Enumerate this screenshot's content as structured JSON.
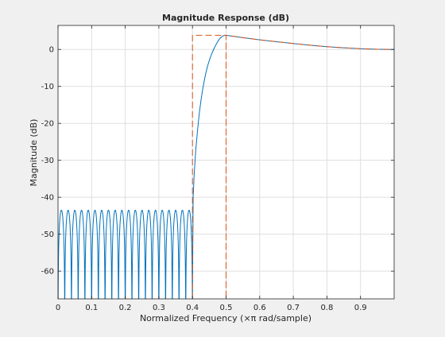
{
  "chart_data": {
    "type": "line",
    "title": "Magnitude Response (dB)",
    "xlabel": "Normalized Frequency (×π rad/sample)",
    "ylabel": "Magnitude (dB)",
    "xlim": [
      0,
      1
    ],
    "ylim": [
      -67.5,
      6.5
    ],
    "grid": true,
    "xticks": [
      0,
      0.1,
      0.2,
      0.3,
      0.4,
      0.5,
      0.6,
      0.7,
      0.8,
      0.9
    ],
    "xtick_labels": [
      "0",
      "0.1",
      "0.2",
      "0.3",
      "0.4",
      "0.5",
      "0.6",
      "0.7",
      "0.8",
      "0.9"
    ],
    "yticks": [
      0,
      -10,
      -20,
      -30,
      -40,
      -50,
      -60
    ],
    "ytick_labels": [
      "0",
      "-10",
      "-20",
      "-30",
      "-40",
      "-50",
      "-60"
    ],
    "series": [
      {
        "kind": "response",
        "color": "#0072bd",
        "stopband": {
          "x_start": 0,
          "x_end": 0.4,
          "lobe_count": 20,
          "peak_db": -43.5,
          "null_db": -67.5
        },
        "transition": [
          [
            0.4,
            -67.5
          ],
          [
            0.402,
            -40
          ],
          [
            0.405,
            -34
          ],
          [
            0.41,
            -27
          ],
          [
            0.415,
            -22
          ],
          [
            0.42,
            -17.5
          ],
          [
            0.425,
            -14
          ],
          [
            0.43,
            -11
          ],
          [
            0.435,
            -8.5
          ],
          [
            0.44,
            -6.3
          ],
          [
            0.445,
            -4.5
          ],
          [
            0.45,
            -3.0
          ],
          [
            0.455,
            -1.7
          ],
          [
            0.46,
            -0.6
          ],
          [
            0.465,
            0.4
          ],
          [
            0.47,
            1.3
          ],
          [
            0.475,
            2.1
          ],
          [
            0.48,
            2.8
          ],
          [
            0.485,
            3.3
          ],
          [
            0.49,
            3.6
          ],
          [
            0.495,
            3.8
          ],
          [
            0.5,
            3.85
          ]
        ],
        "passband": [
          [
            0.5,
            3.85
          ],
          [
            0.55,
            3.2
          ],
          [
            0.6,
            2.6
          ],
          [
            0.65,
            2.1
          ],
          [
            0.7,
            1.6
          ],
          [
            0.75,
            1.15
          ],
          [
            0.8,
            0.75
          ],
          [
            0.85,
            0.45
          ],
          [
            0.9,
            0.2
          ],
          [
            0.95,
            0.05
          ],
          [
            1.0,
            0.0
          ]
        ]
      },
      {
        "kind": "mask",
        "color": "#d95319",
        "dashed": true,
        "points": [
          [
            0.4,
            -67.5
          ],
          [
            0.4,
            3.85
          ],
          [
            0.5,
            3.85
          ],
          [
            0.5,
            -67.5
          ],
          [
            0.5,
            3.85
          ],
          [
            0.55,
            3.2
          ],
          [
            0.6,
            2.6
          ],
          [
            0.65,
            2.1
          ],
          [
            0.7,
            1.6
          ],
          [
            0.75,
            1.15
          ],
          [
            0.8,
            0.75
          ],
          [
            0.85,
            0.45
          ],
          [
            0.9,
            0.2
          ],
          [
            0.95,
            0.05
          ],
          [
            1.0,
            0.0
          ]
        ]
      }
    ]
  }
}
